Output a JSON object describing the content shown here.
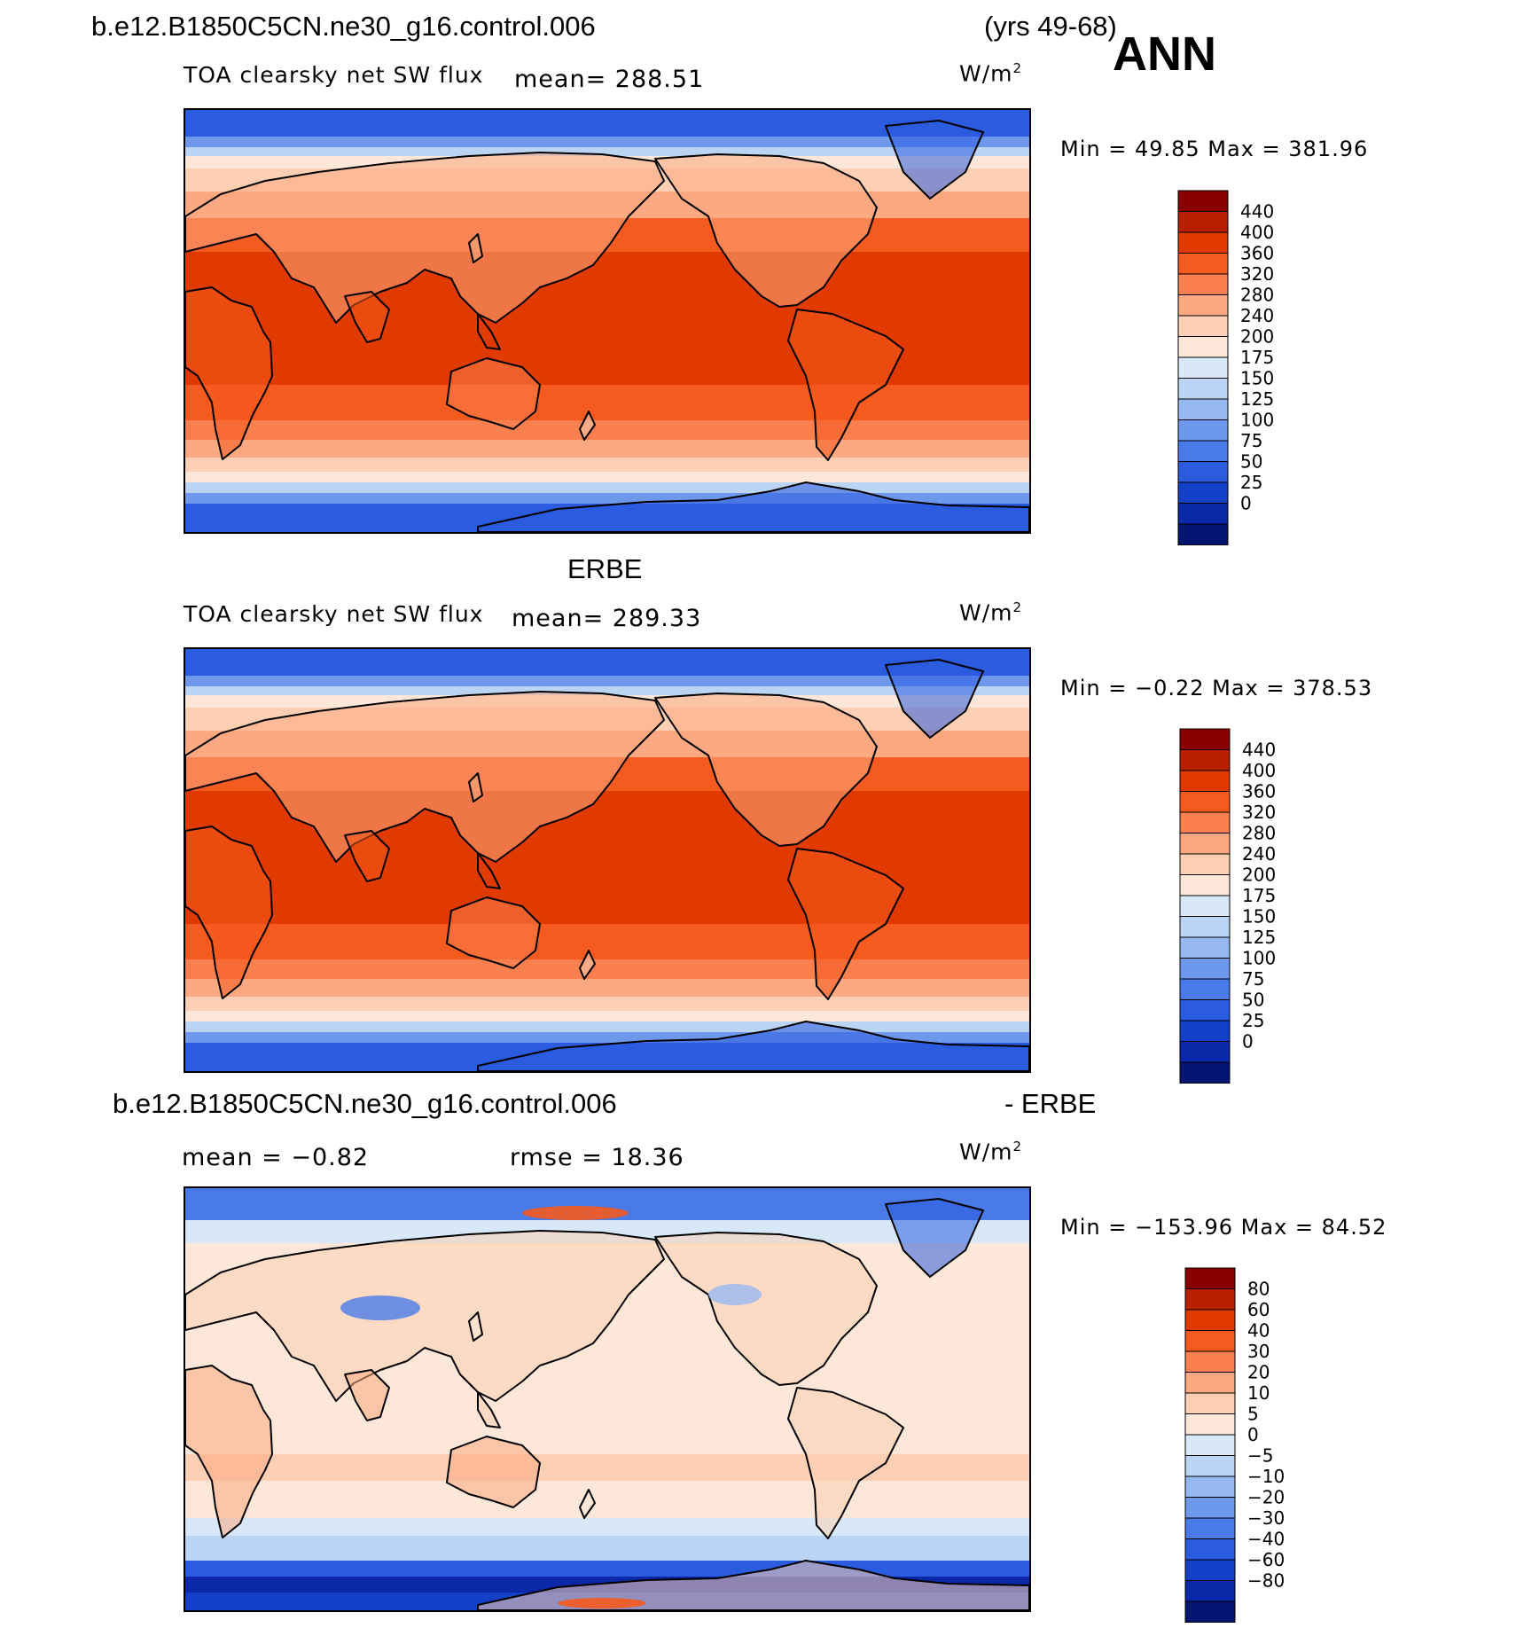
{
  "header": {
    "case_name": "b.e12.B1850C5CN.ne30_g16.control.006",
    "years": "(yrs 49-68)",
    "season": "ANN"
  },
  "panels": [
    {
      "title": "",
      "variable": "TOA clearsky net SW flux",
      "mean_text": "mean=  288.51",
      "units": "W/m",
      "units_sup": "2",
      "minmax": "Min =   49.85  Max  =  381.96",
      "colorbar_labels": [
        "440",
        "400",
        "360",
        "320",
        "280",
        "240",
        "200",
        "175",
        "150",
        "125",
        "100",
        "75",
        "50",
        "25",
        "0"
      ],
      "colorbar_colors": [
        "#8a0000",
        "#b81e00",
        "#e03a00",
        "#f55a1e",
        "#fa8050",
        "#fca982",
        "#fdcfb4",
        "#fde7d8",
        "#d8e8f8",
        "#bcd4f4",
        "#96b8f0",
        "#6e98ec",
        "#4a7ae8",
        "#2b5ce0",
        "#1440c8",
        "#0a28a8",
        "#041470"
      ],
      "map_palette": "ssw"
    },
    {
      "title": "ERBE",
      "variable": "TOA clearsky net SW flux",
      "mean_text": "mean=  289.33",
      "units": "W/m",
      "units_sup": "2",
      "minmax": "Min =   −0.22  Max  =  378.53",
      "colorbar_labels": [
        "440",
        "400",
        "360",
        "320",
        "280",
        "240",
        "200",
        "175",
        "150",
        "125",
        "100",
        "75",
        "50",
        "25",
        "0"
      ],
      "colorbar_colors": [
        "#8a0000",
        "#b81e00",
        "#e03a00",
        "#f55a1e",
        "#fa8050",
        "#fca982",
        "#fdcfb4",
        "#fde7d8",
        "#d8e8f8",
        "#bcd4f4",
        "#96b8f0",
        "#6e98ec",
        "#4a7ae8",
        "#2b5ce0",
        "#1440c8",
        "#0a28a8",
        "#041470"
      ],
      "map_palette": "ssw"
    },
    {
      "title": "b.e12.B1850C5CN.ne30_g16.control.006",
      "title_right": "- ERBE",
      "mean_text": "mean  =   −0.82",
      "rmse_text": "rmse  =    18.36",
      "units": "W/m",
      "units_sup": "2",
      "minmax": "Min  = −153.96  Max  =    84.52",
      "colorbar_labels": [
        "80",
        "60",
        "40",
        "30",
        "20",
        "10",
        "5",
        "0",
        "−5",
        "−10",
        "−20",
        "−30",
        "−40",
        "−60",
        "−80"
      ],
      "colorbar_colors": [
        "#8a0000",
        "#b81e00",
        "#e03a00",
        "#f55a1e",
        "#fa8050",
        "#fca982",
        "#fdcfb4",
        "#fde7d8",
        "#d8e8f8",
        "#bcd4f4",
        "#96b8f0",
        "#6e98ec",
        "#4a7ae8",
        "#2b5ce0",
        "#1440c8",
        "#0a28a8",
        "#041470"
      ],
      "map_palette": "diff"
    }
  ]
}
